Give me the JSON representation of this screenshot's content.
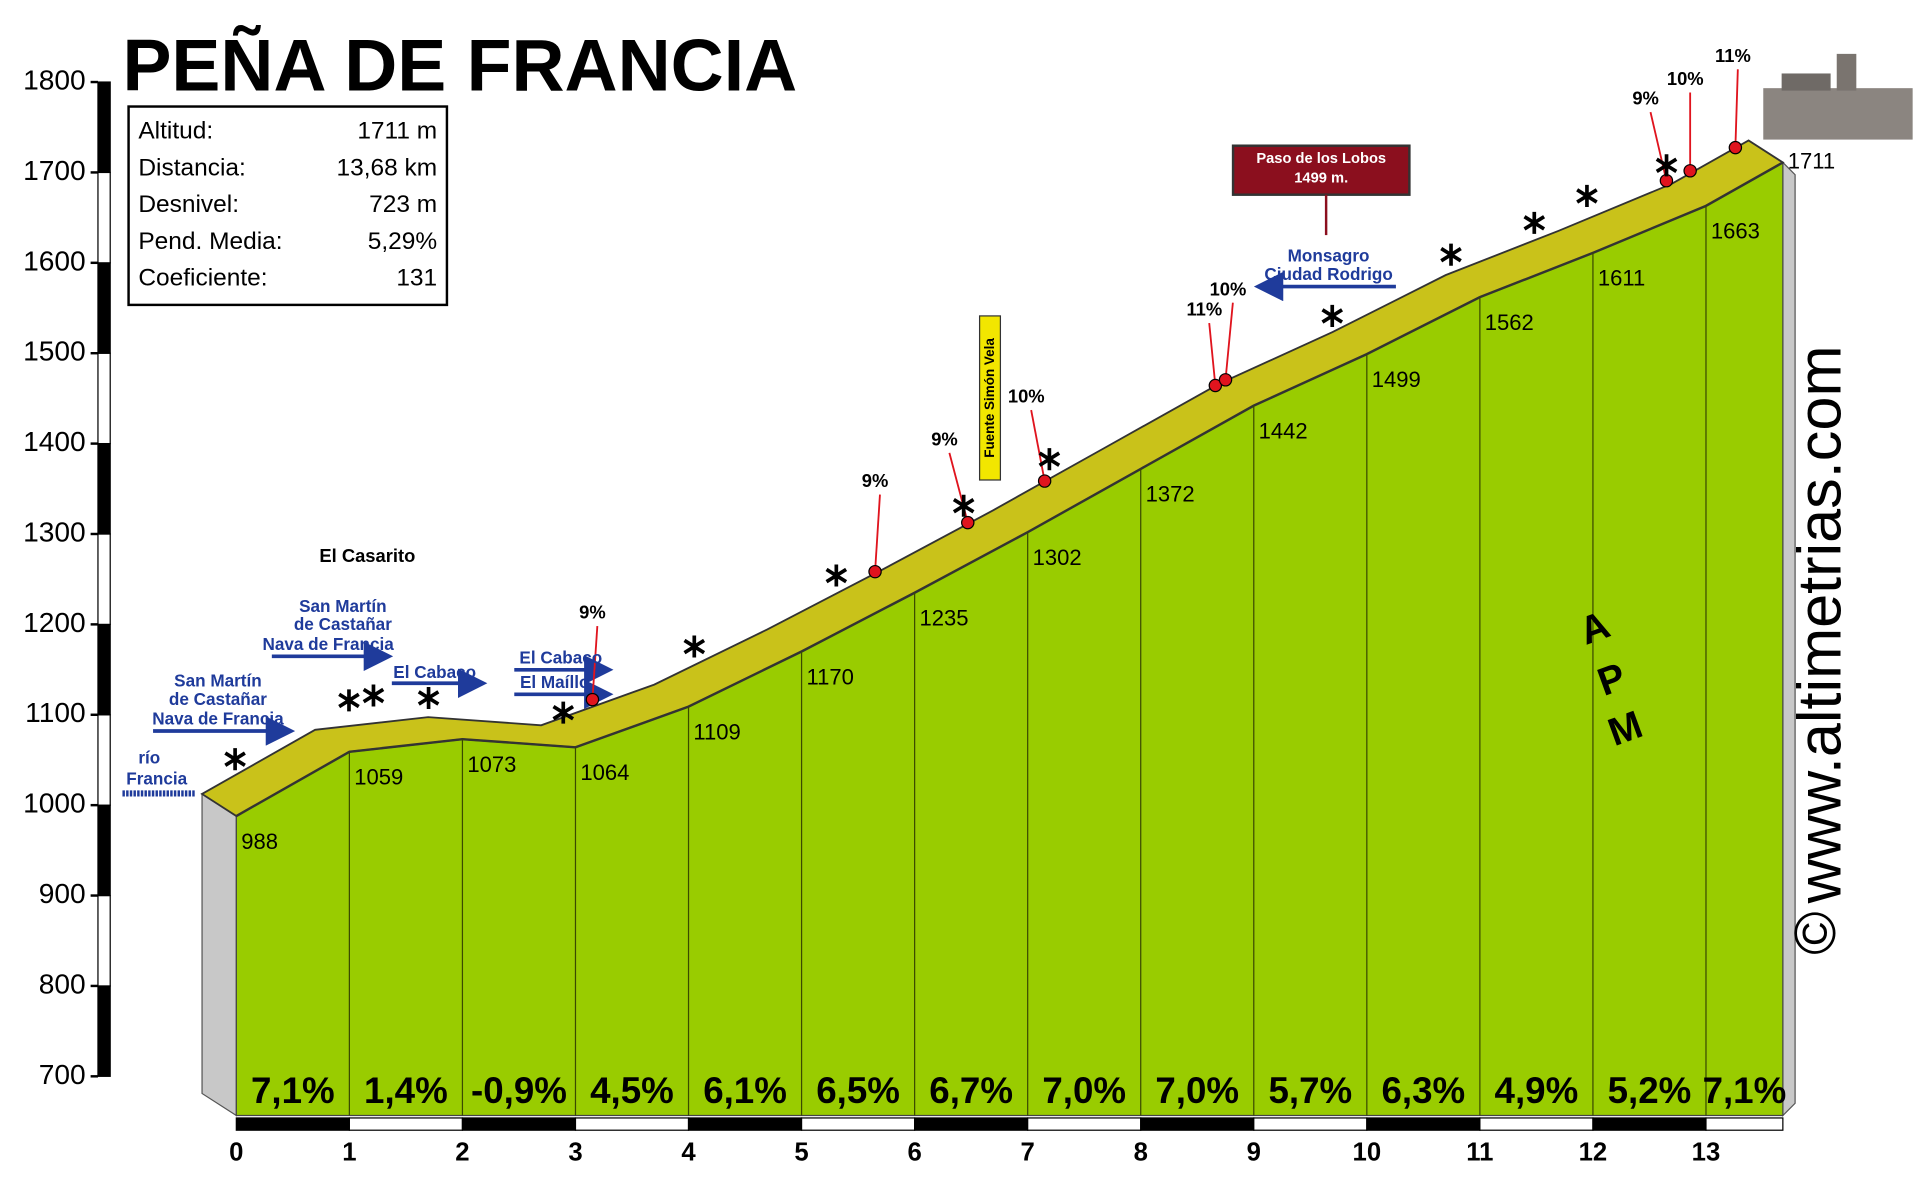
{
  "chart_data": {
    "type": "profile",
    "title": "PEÑA DE FRANCIA",
    "info_box": [
      [
        "Altitud:",
        "1711 m"
      ],
      [
        "Distancia:",
        "13,68 km"
      ],
      [
        "Desnivel:",
        "723 m"
      ],
      [
        "Pend. Media:",
        "5,29%"
      ],
      [
        "Coeficiente:",
        "131"
      ]
    ],
    "x": [
      0,
      1,
      2,
      3,
      4,
      5,
      6,
      7,
      8,
      9,
      10,
      11,
      12,
      13,
      13.68
    ],
    "values": [
      988,
      1059,
      1073,
      1064,
      1109,
      1170,
      1235,
      1302,
      1372,
      1442,
      1499,
      1562,
      1611,
      1663,
      1711
    ],
    "xlim": [
      0,
      13.68
    ],
    "xticks": [
      0,
      1,
      2,
      3,
      4,
      5,
      6,
      7,
      8,
      9,
      10,
      11,
      12,
      13
    ],
    "ylim": [
      700,
      1800
    ],
    "yticks": [
      700,
      800,
      900,
      1000,
      1100,
      1200,
      1300,
      1400,
      1500,
      1600,
      1700,
      1800
    ],
    "segments": {
      "values": [
        7.1,
        1.4,
        -0.9,
        4.5,
        6.1,
        6.5,
        6.7,
        7.0,
        7.0,
        5.7,
        6.3,
        4.9,
        5.2,
        7.1
      ],
      "value_labels": [
        "7,1%",
        "1,4%",
        "-0,9%",
        "4,5%",
        "6,1%",
        "6,5%",
        "6,7%",
        "7,0%",
        "7,0%",
        "5,7%",
        "6,3%",
        "4,9%",
        "5,2%",
        "7,1%"
      ]
    },
    "steep_points": {
      "x": [
        3.15,
        5.65,
        6.47,
        7.15,
        8.66,
        8.75,
        12.65,
        12.86,
        13.26
      ],
      "values": [
        9,
        9,
        9,
        10,
        11,
        10,
        9,
        10,
        11
      ],
      "value_labels": [
        "9%",
        "9%",
        "9%",
        "10%",
        "11%",
        "10%",
        "9%",
        "10%",
        "11%"
      ]
    },
    "colors": {
      "face": "#99cc00",
      "top": "#c9c21a",
      "side": "#c8c8c8",
      "steep": "#e0141e"
    },
    "annotations": [
      "río",
      "Francia",
      "San Martín",
      "de Castañar",
      "Nava de Francia",
      "El Casarito",
      "San Martín",
      "de Castañar",
      "Nava de Francia",
      "El Cabaco",
      "El Cabaco",
      "El Maíllo",
      "Monsagro",
      "Ciudad Rodrigo",
      "Fuente Simón Vela"
    ],
    "pass": [
      "Paso de los Lobos",
      "1499 m."
    ],
    "watermark": "www.altimetrias.com",
    "copyright": "©",
    "logo": [
      "A",
      "P",
      "M"
    ]
  }
}
